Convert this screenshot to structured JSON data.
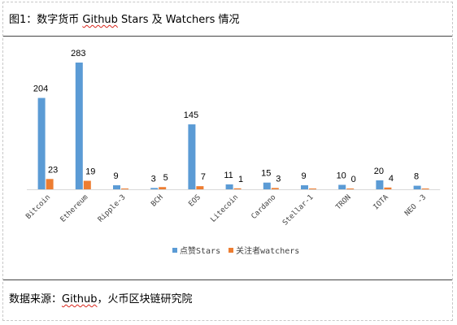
{
  "header": {
    "title_prefix": "图1：数字货币 ",
    "title_github": "Github",
    "title_suffix": " Stars 及 Watchers 情况"
  },
  "footer": {
    "source_prefix": "数据来源：",
    "source_github": "Github",
    "source_suffix": "，火币区块链研究院"
  },
  "colors": {
    "stars": "#5b9bd5",
    "watchers": "#ed7d31",
    "axis": "#d9d9d9",
    "label": "#404040"
  },
  "chart_data": {
    "type": "bar",
    "categories": [
      "Bitcoin",
      "Ethereum",
      "Ripple-3",
      "BCH",
      "EOS",
      "Litecoin",
      "Cardano",
      "Stellar-1",
      "TRON",
      "IOTA",
      "NEO -3"
    ],
    "series": [
      {
        "name": "点赞Stars",
        "values": [
          204,
          283,
          9,
          3,
          145,
          11,
          15,
          9,
          10,
          20,
          8
        ]
      },
      {
        "name": "关注者watchers",
        "values": [
          23,
          19,
          0,
          5,
          7,
          1,
          3,
          0,
          0,
          4,
          0
        ]
      }
    ],
    "data_labels": [
      [
        "204",
        "283",
        "9",
        "3",
        "145",
        "11",
        "15",
        "9",
        "10",
        "20",
        "8"
      ],
      [
        "23",
        "19",
        "",
        "5",
        "7",
        "1",
        "3",
        "",
        "0",
        "4",
        ""
      ]
    ],
    "title": "",
    "xlabel": "",
    "ylabel": "",
    "ylim": [
      0,
      300
    ],
    "grid": false,
    "legend_position": "bottom"
  }
}
